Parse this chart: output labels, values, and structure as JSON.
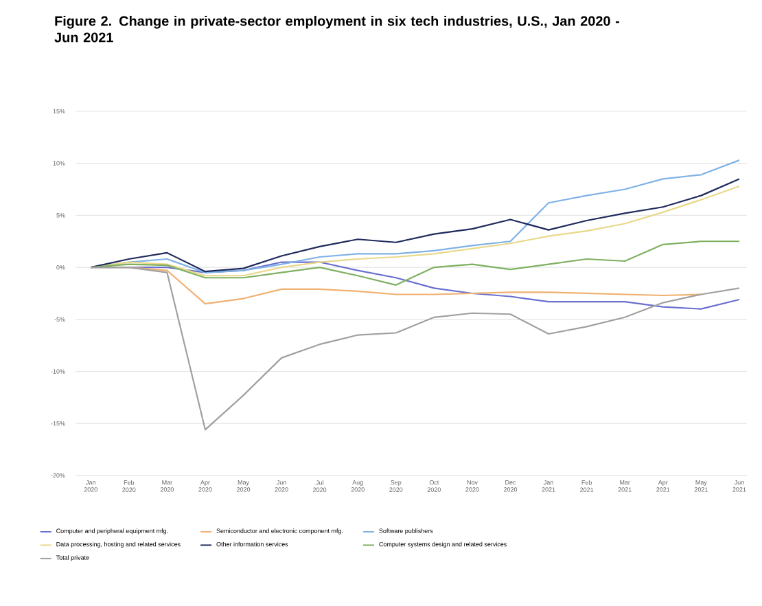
{
  "chart_data": {
    "type": "line",
    "title": "Figure 2. Change in private-sector employment in six tech industries, U.S., Jan 2020 - Jun 2021",
    "categories": [
      "Jan 2020",
      "Feb 2020",
      "Mar 2020",
      "Apr 2020",
      "May 2020",
      "Jun 2020",
      "Jul 2020",
      "Aug 2020",
      "Sep 2020",
      "Oct 2020",
      "Nov 2020",
      "Dec 2020",
      "Jan 2021",
      "Feb 2021",
      "Mar 2021",
      "Apr 2021",
      "May 2021",
      "Jun 2021"
    ],
    "ylim": [
      -20,
      15
    ],
    "yticks": [
      {
        "value": -20,
        "label": "-20%"
      },
      {
        "value": -15,
        "label": "-15%"
      },
      {
        "value": -10,
        "label": "-10%"
      },
      {
        "value": -5,
        "label": "-5%"
      },
      {
        "value": 0,
        "label": "0%"
      },
      {
        "value": 5,
        "label": "5%"
      },
      {
        "value": 10,
        "label": "10%"
      },
      {
        "value": 15,
        "label": "15%"
      }
    ],
    "grid": "y",
    "legend": "bottom",
    "marker": "none",
    "line_style": "solid",
    "series": [
      {
        "name": "Computer and peripheral equipment mfg.",
        "color": "#6a6fd0",
        "values": [
          0,
          0,
          0,
          -0.5,
          -0.3,
          0.5,
          0.5,
          -0.3,
          -1.0,
          -2.0,
          -2.5,
          -2.8,
          -3.3,
          -3.3,
          -3.3,
          -3.8,
          -4.0,
          -3.1
        ]
      },
      {
        "name": "Semiconductor and electronic component mfg.",
        "color": "#f0b070",
        "values": [
          0,
          0,
          -0.3,
          -3.5,
          -3.0,
          -2.1,
          -2.1,
          -2.3,
          -2.6,
          -2.6,
          -2.5,
          -2.4,
          -2.4,
          -2.5,
          -2.6,
          -2.7,
          -2.6,
          null
        ]
      },
      {
        "name": "Software publishers",
        "color": "#7fb2e6",
        "values": [
          0,
          0.5,
          0.8,
          -0.5,
          -0.3,
          0.3,
          1.0,
          1.3,
          1.3,
          1.6,
          2.1,
          2.5,
          6.2,
          6.9,
          7.5,
          8.5,
          8.9,
          10.3
        ]
      },
      {
        "name": "Data processing, hosting and related services",
        "color": "#e8d88a",
        "values": [
          0,
          0.5,
          0.3,
          -0.8,
          -0.8,
          0,
          0.5,
          0.8,
          1.0,
          1.3,
          1.8,
          2.3,
          3.0,
          3.5,
          4.2,
          5.3,
          6.5,
          7.8
        ]
      },
      {
        "name": "Other information services",
        "color": "#1f2a5c",
        "values": [
          0,
          0.8,
          1.4,
          -0.4,
          -0.1,
          1.1,
          2.0,
          2.7,
          2.4,
          3.2,
          3.7,
          4.6,
          3.6,
          4.5,
          5.2,
          5.8,
          6.9,
          8.5
        ]
      },
      {
        "name": "Computer systems design and related services",
        "color": "#7fb060",
        "values": [
          0,
          0.3,
          0.2,
          -1.0,
          -1.0,
          -0.5,
          0,
          -0.8,
          -1.7,
          0,
          0.3,
          -0.2,
          0.3,
          0.8,
          0.6,
          2.2,
          2.5,
          2.5
        ]
      },
      {
        "name": "Total private",
        "color": "#a0a0a0",
        "values": [
          0,
          0,
          -0.5,
          -15.6,
          -12.3,
          -8.7,
          -7.4,
          -6.5,
          -6.3,
          -4.8,
          -4.4,
          -4.5,
          -6.4,
          -5.7,
          -4.8,
          -3.4,
          -2.6,
          -2.0
        ]
      }
    ]
  }
}
